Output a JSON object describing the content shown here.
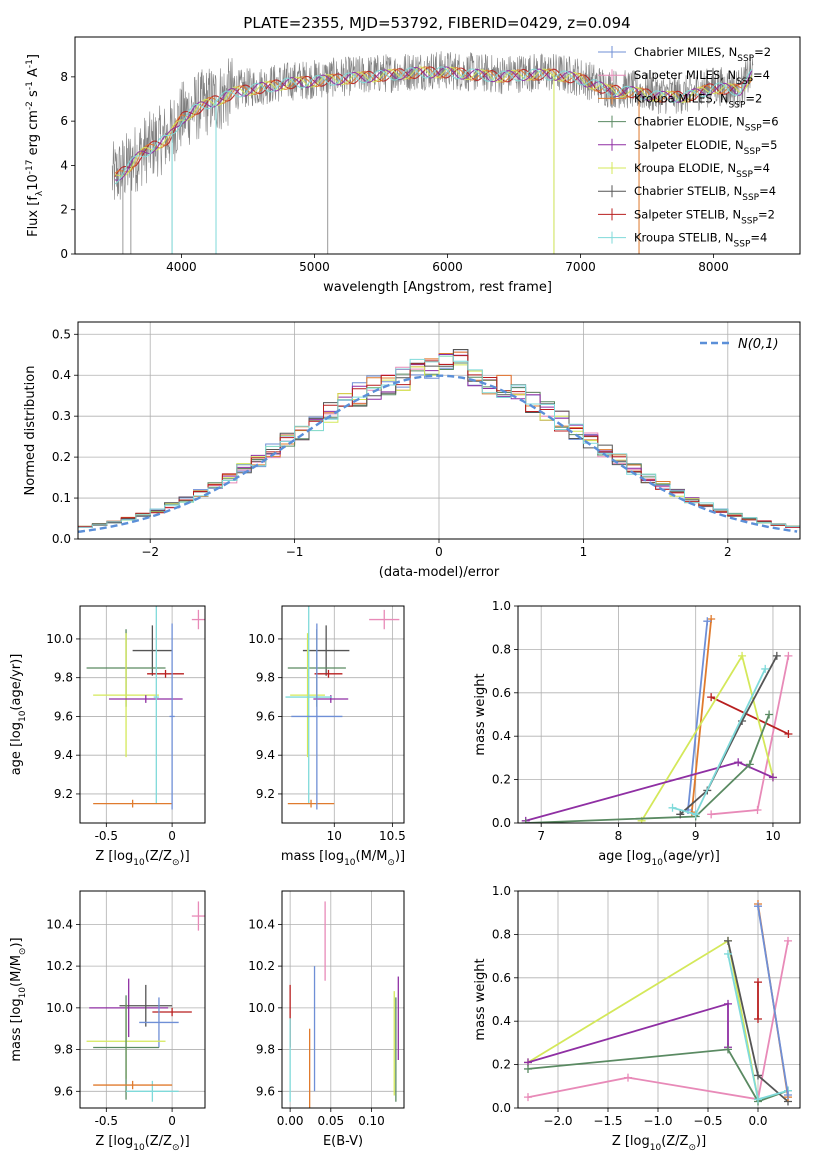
{
  "colors": {
    "chabrier_miles": "#6f8fd6",
    "salpeter_miles": "#e88ab8",
    "kroupa_miles": "#e07b2e",
    "chabrier_elodie": "#5a8a62",
    "salpeter_elodie": "#8f2fa3",
    "kroupa_elodie": "#d4e85a",
    "chabrier_stelib": "#555555",
    "salpeter_stelib": "#b81f1f",
    "kroupa_stelib": "#7fdada",
    "data_gray": "#808080",
    "normal_curve": "#5b8fd8",
    "grid": "#b0b0b0"
  },
  "chart_data": [
    {
      "id": "spectrum",
      "type": "line",
      "title": "PLATE=2355, MJD=53792, FIBERID=0429, z=0.094",
      "xlabel": "wavelength [Angstrom, rest frame]",
      "ylabel": "Flux [f$_\\lambda$10$^{-17}$ erg cm$^{-2}$ s$^{-1}$ A$^{-1}$]",
      "xlim": [
        3200,
        8650
      ],
      "ylim": [
        0,
        9.8
      ],
      "xticks": [
        4000,
        5000,
        6000,
        7000,
        8000
      ],
      "yticks": [
        0,
        2,
        4,
        6,
        8
      ],
      "grid": false,
      "legend_position": "right",
      "legend": [
        {
          "label": "Chabrier MILES, N$_{SSP}$=2",
          "color": "chabrier_miles"
        },
        {
          "label": "Salpeter MILES, N$_{SSP}$=4",
          "color": "salpeter_miles"
        },
        {
          "label": "Kroupa MILES, N$_{SSP}$=2",
          "color": "kroupa_miles"
        },
        {
          "label": "Chabrier ELODIE, N$_{SSP}$=6",
          "color": "chabrier_elodie"
        },
        {
          "label": "Salpeter ELODIE, N$_{SSP}$=5",
          "color": "salpeter_elodie"
        },
        {
          "label": "Kroupa ELODIE, N$_{SSP}$=4",
          "color": "kroupa_elodie"
        },
        {
          "label": "Chabrier STELIB, N$_{SSP}$=4",
          "color": "chabrier_stelib"
        },
        {
          "label": "Salpeter STELIB, N$_{SSP}$=2",
          "color": "salpeter_stelib"
        },
        {
          "label": "Kroupa STELIB, N$_{SSP}$=4",
          "color": "kroupa_stelib"
        }
      ],
      "continuum": {
        "x": [
          3500,
          3600,
          3700,
          3800,
          3900,
          4000,
          4100,
          4200,
          4300,
          4400,
          4600,
          4800,
          5000,
          5200,
          5400,
          5600,
          5800,
          6000,
          6200,
          6400,
          6600,
          6800,
          7000,
          7200,
          7400,
          7600,
          7800,
          8000,
          8200,
          8300
        ],
        "y": [
          3.5,
          4.0,
          4.6,
          5.0,
          5.3,
          6.2,
          6.6,
          6.9,
          7.1,
          7.4,
          7.6,
          7.8,
          7.9,
          8.0,
          8.1,
          8.2,
          8.3,
          8.3,
          8.2,
          8.1,
          8.2,
          8.2,
          8.0,
          7.5,
          7.4,
          7.2,
          7.2,
          7.6,
          7.5,
          8.3
        ]
      },
      "spikes": [
        {
          "x": 3560,
          "y": 0
        },
        {
          "x": 3620,
          "y": 0
        },
        {
          "x": 3930,
          "y": 0
        },
        {
          "x": 4260,
          "y": 0
        },
        {
          "x": 5100,
          "y": 0
        },
        {
          "x": 6800,
          "y": 0
        },
        {
          "x": 7440,
          "y": 0
        }
      ]
    },
    {
      "id": "residuals",
      "type": "line",
      "xlabel": "(data-model)/error",
      "ylabel": "Normed distribution",
      "xlim": [
        -2.5,
        2.5
      ],
      "ylim": [
        0,
        0.53
      ],
      "xticks": [
        -2,
        -1,
        0,
        1,
        2
      ],
      "xtick_labels": [
        "−2",
        "−1",
        "0",
        "1",
        "2"
      ],
      "yticks": [
        0.0,
        0.1,
        0.2,
        0.3,
        0.4,
        0.5
      ],
      "grid": true,
      "legend_position": "top-right",
      "legend": [
        {
          "label": "N(0,1)",
          "color": "normal_curve"
        }
      ],
      "bin_width": 0.1
    },
    {
      "id": "age_vs_Z",
      "type": "scatter",
      "xlabel": "Z [log$_{10}$(Z/Z$_\\odot$)]",
      "ylabel": "age  [log$_{10}$(age/yr)]",
      "xlim": [
        -0.7,
        0.25
      ],
      "ylim": [
        9.05,
        10.17
      ],
      "xticks": [
        -0.5,
        0.0
      ],
      "yticks": [
        9.2,
        9.4,
        9.6,
        9.8,
        10.0
      ],
      "grid": true,
      "points": [
        {
          "model": "salpeter_miles",
          "x": 0.2,
          "y": 10.1,
          "xerr": 0.05,
          "yerr": 0.05
        },
        {
          "model": "chabrier_stelib",
          "x": -0.15,
          "y": 9.94,
          "xerr": 0.15,
          "yerr": 0.13
        },
        {
          "model": "chabrier_elodie",
          "x": -0.35,
          "y": 9.85,
          "xerr": 0.3,
          "yerr": 0.2
        },
        {
          "model": "salpeter_stelib",
          "x": -0.05,
          "y": 9.82,
          "xerr": 0.14,
          "yerr": 0.02
        },
        {
          "model": "kroupa_elodie",
          "x": -0.35,
          "y": 9.71,
          "xerr": 0.25,
          "yerr": 0.32
        },
        {
          "model": "salpeter_elodie",
          "x": -0.2,
          "y": 9.69,
          "xerr": 0.28,
          "yerr": 0.02
        },
        {
          "model": "kroupa_stelib",
          "x": -0.12,
          "y": 9.7,
          "xerr": 0.02,
          "yerr": 0.55
        },
        {
          "model": "kroupa_miles",
          "x": -0.3,
          "y": 9.15,
          "xerr": 0.3,
          "yerr": 0.02
        },
        {
          "model": "chabrier_miles",
          "x": 0.0,
          "y": 9.6,
          "xerr": 0.02,
          "yerr": 0.48
        }
      ]
    },
    {
      "id": "age_vs_mass",
      "type": "scatter",
      "xlabel": "mass [log$_{10}$(M/M$_\\odot$)]",
      "xlim": [
        9.55,
        10.6
      ],
      "ylim": [
        9.05,
        10.17
      ],
      "xticks": [
        10.0,
        10.5
      ],
      "yticks": [
        9.2,
        9.4,
        9.6,
        9.8,
        10.0
      ],
      "grid": true,
      "points": [
        {
          "model": "salpeter_miles",
          "x": 10.43,
          "y": 10.1,
          "xerr": 0.13,
          "yerr": 0.05
        },
        {
          "model": "chabrier_stelib",
          "x": 9.93,
          "y": 9.94,
          "xerr": 0.2,
          "yerr": 0.13
        },
        {
          "model": "chabrier_elodie",
          "x": 9.85,
          "y": 9.85,
          "xerr": 0.25,
          "yerr": 0.2
        },
        {
          "model": "salpeter_stelib",
          "x": 9.95,
          "y": 9.82,
          "xerr": 0.12,
          "yerr": 0.02
        },
        {
          "model": "kroupa_elodie",
          "x": 9.77,
          "y": 9.71,
          "xerr": 0.15,
          "yerr": 0.32
        },
        {
          "model": "salpeter_elodie",
          "x": 9.97,
          "y": 9.69,
          "xerr": 0.15,
          "yerr": 0.02
        },
        {
          "model": "kroupa_stelib",
          "x": 9.78,
          "y": 9.7,
          "xerr": 0.2,
          "yerr": 0.55
        },
        {
          "model": "kroupa_miles",
          "x": 9.8,
          "y": 9.15,
          "xerr": 0.2,
          "yerr": 0.02
        },
        {
          "model": "chabrier_miles",
          "x": 9.85,
          "y": 9.6,
          "xerr": 0.22,
          "yerr": 0.48
        }
      ]
    },
    {
      "id": "massweight_vs_age",
      "type": "line",
      "xlabel": "age  [log$_{10}$(age/yr)]",
      "ylabel": "mass weight",
      "xlim": [
        6.7,
        10.35
      ],
      "ylim": [
        0,
        1.0
      ],
      "xticks": [
        7,
        8,
        9,
        10
      ],
      "yticks": [
        0.0,
        0.2,
        0.4,
        0.6,
        0.8,
        1.0
      ],
      "grid": true,
      "series": [
        {
          "model": "kroupa_miles",
          "x": [
            8.95,
            9.2
          ],
          "y": [
            0.05,
            0.94
          ]
        },
        {
          "model": "chabrier_miles",
          "x": [
            8.9,
            9.15
          ],
          "y": [
            0.06,
            0.93
          ]
        },
        {
          "model": "salpeter_miles",
          "x": [
            9.2,
            9.8,
            10.2
          ],
          "y": [
            0.04,
            0.06,
            0.77
          ]
        },
        {
          "model": "salpeter_stelib",
          "x": [
            9.2,
            10.2
          ],
          "y": [
            0.58,
            0.41
          ]
        },
        {
          "model": "kroupa_elodie",
          "x": [
            8.3,
            9.6,
            10.0
          ],
          "y": [
            0.01,
            0.77,
            0.21
          ]
        },
        {
          "model": "salpeter_elodie",
          "x": [
            6.8,
            9.55,
            10.0
          ],
          "y": [
            0.01,
            0.28,
            0.21
          ]
        },
        {
          "model": "chabrier_elodie",
          "x": [
            6.8,
            9.0,
            9.7,
            9.95
          ],
          "y": [
            0.0,
            0.03,
            0.27,
            0.5
          ]
        },
        {
          "model": "chabrier_stelib",
          "x": [
            8.8,
            9.15,
            9.6,
            10.05
          ],
          "y": [
            0.04,
            0.15,
            0.47,
            0.77
          ]
        },
        {
          "model": "kroupa_stelib",
          "x": [
            8.7,
            9.0,
            9.9
          ],
          "y": [
            0.07,
            0.04,
            0.71
          ]
        }
      ]
    },
    {
      "id": "mass_vs_Z",
      "type": "scatter",
      "xlabel": "Z [log$_{10}$(Z/Z$_\\odot$)]",
      "ylabel": "mass [log$_{10}$(M/M$_\\odot$)]",
      "xlim": [
        -0.7,
        0.25
      ],
      "ylim": [
        9.52,
        10.56
      ],
      "xticks": [
        -0.5,
        0.0
      ],
      "yticks": [
        9.6,
        9.8,
        10.0,
        10.2,
        10.4
      ],
      "grid": true,
      "points": [
        {
          "model": "salpeter_miles",
          "x": 0.2,
          "y": 10.44,
          "xerr": 0.05,
          "yerr": 0.07
        },
        {
          "model": "salpeter_elodie",
          "x": -0.33,
          "y": 10.0,
          "xerr": 0.3,
          "yerr": 0.14
        },
        {
          "model": "chabrier_stelib",
          "x": -0.2,
          "y": 10.01,
          "xerr": 0.2,
          "yerr": 0.1
        },
        {
          "model": "salpeter_stelib",
          "x": 0.0,
          "y": 9.98,
          "xerr": 0.15,
          "yerr": 0.02
        },
        {
          "model": "chabrier_miles",
          "x": -0.1,
          "y": 9.93,
          "xerr": 0.15,
          "yerr": 0.12
        },
        {
          "model": "kroupa_elodie",
          "x": -0.35,
          "y": 9.84,
          "xerr": 0.3,
          "yerr": 0.18
        },
        {
          "model": "chabrier_elodie",
          "x": -0.35,
          "y": 9.81,
          "xerr": 0.25,
          "yerr": 0.25
        },
        {
          "model": "kroupa_stelib",
          "x": -0.15,
          "y": 9.6,
          "xerr": 0.2,
          "yerr": 0.05
        },
        {
          "model": "kroupa_miles",
          "x": -0.3,
          "y": 9.63,
          "xerr": 0.3,
          "yerr": 0.02
        }
      ]
    },
    {
      "id": "mass_vs_ebv",
      "type": "scatter",
      "xlabel": "E(B-V)",
      "xlim": [
        -0.01,
        0.14
      ],
      "ylim": [
        9.52,
        10.56
      ],
      "xticks": [
        0.0,
        0.05,
        0.1
      ],
      "xtick_labels": [
        "0.00",
        "0.05",
        "0.10"
      ],
      "yticks": [
        9.6,
        9.8,
        10.0,
        10.2,
        10.4
      ],
      "grid": true,
      "points": [
        {
          "model": "salpeter_miles",
          "x": 0.043,
          "y": 10.32,
          "xerr": 0.0,
          "yerr": 0.19
        },
        {
          "model": "chabrier_miles",
          "x": 0.03,
          "y": 9.9,
          "xerr": 0.0,
          "yerr": 0.3
        },
        {
          "model": "kroupa_miles",
          "x": 0.024,
          "y": 9.7,
          "xerr": 0.0,
          "yerr": 0.2
        },
        {
          "model": "salpeter_stelib",
          "x": 0.0,
          "y": 9.96,
          "xerr": 0.0,
          "yerr": 0.15
        },
        {
          "model": "kroupa_stelib",
          "x": 0.0,
          "y": 9.75,
          "xerr": 0.0,
          "yerr": 0.2
        },
        {
          "model": "salpeter_elodie",
          "x": 0.133,
          "y": 9.95,
          "xerr": 0.0,
          "yerr": 0.2
        },
        {
          "model": "chabrier_elodie",
          "x": 0.13,
          "y": 9.8,
          "xerr": 0.0,
          "yerr": 0.25
        },
        {
          "model": "kroupa_elodie",
          "x": 0.128,
          "y": 9.83,
          "xerr": 0.0,
          "yerr": 0.25
        }
      ]
    },
    {
      "id": "massweight_vs_Z",
      "type": "line",
      "xlabel": "Z [log$_{10}$(Z/Z$_\\odot$)]",
      "ylabel": "mass weight",
      "xlim": [
        -2.4,
        0.42
      ],
      "ylim": [
        0,
        1.0
      ],
      "xticks": [
        -2.0,
        -1.5,
        -1.0,
        -0.5,
        0.0
      ],
      "xtick_labels": [
        "−2.0",
        "−1.5",
        "−1.0",
        "−0.5",
        "0.0"
      ],
      "yticks": [
        0.0,
        0.2,
        0.4,
        0.6,
        0.8,
        1.0
      ],
      "grid": true,
      "series": [
        {
          "model": "salpeter_miles",
          "x": [
            -2.3,
            -1.3,
            0.0,
            0.3
          ],
          "y": [
            0.05,
            0.14,
            0.04,
            0.77
          ]
        },
        {
          "model": "kroupa_elodie",
          "x": [
            -2.3,
            -0.3,
            0.0
          ],
          "y": [
            0.21,
            0.77,
            0.04
          ]
        },
        {
          "model": "salpeter_elodie",
          "x": [
            -2.3,
            -0.3,
            -0.3
          ],
          "y": [
            0.21,
            0.48,
            0.28
          ]
        },
        {
          "model": "chabrier_elodie",
          "x": [
            -2.3,
            -0.3,
            0.0,
            0.3
          ],
          "y": [
            0.18,
            0.27,
            0.03,
            0.08
          ]
        },
        {
          "model": "chabrier_stelib",
          "x": [
            -0.3,
            0.0,
            0.3
          ],
          "y": [
            0.77,
            0.15,
            0.03
          ]
        },
        {
          "model": "kroupa_stelib",
          "x": [
            -0.3,
            0.0,
            0.3
          ],
          "y": [
            0.71,
            0.04,
            0.08
          ]
        },
        {
          "model": "kroupa_miles",
          "x": [
            0.0,
            0.3
          ],
          "y": [
            0.94,
            0.05
          ]
        },
        {
          "model": "chabrier_miles",
          "x": [
            0.0,
            0.3
          ],
          "y": [
            0.93,
            0.06
          ]
        },
        {
          "model": "salpeter_stelib",
          "x": [
            0.0,
            0.0
          ],
          "y": [
            0.41,
            0.58
          ]
        }
      ]
    }
  ]
}
